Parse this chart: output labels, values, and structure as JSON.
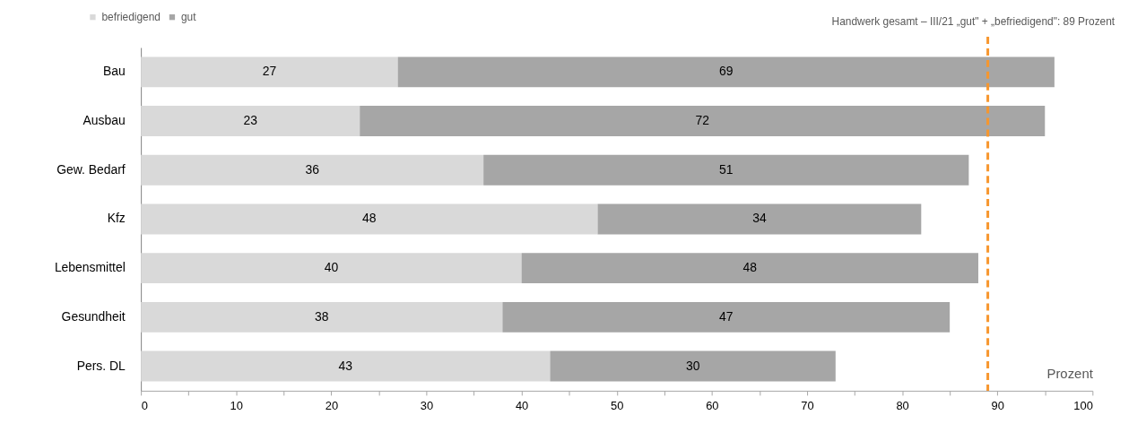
{
  "chart_data": {
    "type": "bar",
    "orientation": "horizontal",
    "stacked": true,
    "categories": [
      "Bau",
      "Ausbau",
      "Gew. Bedarf",
      "Kfz",
      "Lebensmittel",
      "Gesundheit",
      "Pers. DL"
    ],
    "series": [
      {
        "name": "befriedigend",
        "color": "#d9d9d9",
        "values": [
          27,
          23,
          36,
          48,
          40,
          38,
          43
        ]
      },
      {
        "name": "gut",
        "color": "#a6a6a6",
        "values": [
          69,
          72,
          51,
          34,
          48,
          47,
          30
        ]
      }
    ],
    "xlabel": "Prozent",
    "xlim": [
      0,
      100
    ],
    "xticks": [
      0,
      {
        "value": 5,
        "label": null
      },
      10,
      {
        "value": 15,
        "label": null
      },
      20,
      {
        "value": 25,
        "label": null
      },
      30,
      {
        "value": 35,
        "label": null
      },
      40,
      {
        "value": 45,
        "label": null
      },
      50,
      {
        "value": 55,
        "label": null
      },
      60,
      {
        "value": 65,
        "label": null
      },
      70,
      {
        "value": 75,
        "label": null
      },
      80,
      {
        "value": 85,
        "label": null
      },
      90,
      {
        "value": 95,
        "label": null
      },
      100
    ],
    "ref_lines": [
      {
        "axis": "x",
        "value": 89,
        "label": "Handwerk gesamt – III/21 „gut\" + „befriedigend\": 89 Prozent",
        "color": "#f7962d",
        "line_style": "dashed"
      }
    ],
    "data_labels": true,
    "legend": "top left",
    "grid": false
  }
}
